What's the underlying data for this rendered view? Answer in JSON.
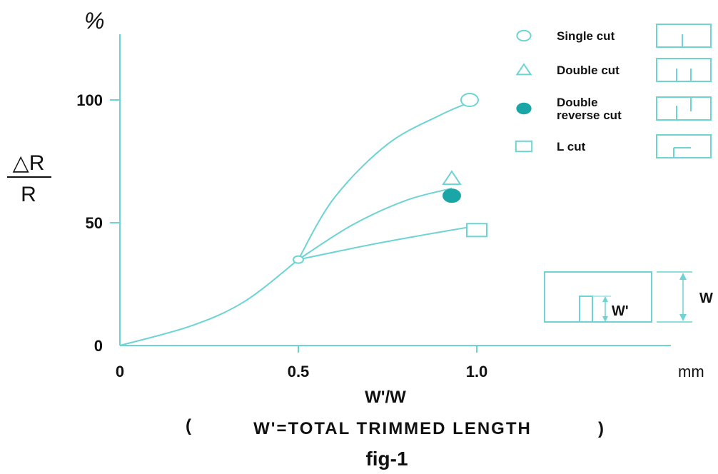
{
  "chart_data": {
    "type": "line",
    "title": "",
    "caption": "fig-1",
    "xlabel": "W'/W",
    "xlabel_note": "W'=TOTAL TRIMMED LENGTH",
    "x_unit": "mm",
    "y_unit": "%",
    "ylabel_numerator": "△R",
    "ylabel_denominator": "R",
    "xlim": [
      0,
      1.5
    ],
    "ylim": [
      0,
      115
    ],
    "x_ticks": [
      "0",
      "0.5",
      "1.0"
    ],
    "x_tick_values": [
      0,
      0.5,
      1.0
    ],
    "y_ticks": [
      "0",
      "50",
      "100"
    ],
    "y_tick_values": [
      0,
      50,
      100
    ],
    "grid": false,
    "legend_position": "top-right",
    "shared_curve": {
      "x": [
        0,
        0.2,
        0.35,
        0.5
      ],
      "y": [
        0,
        8,
        18,
        35
      ]
    },
    "branch_start": {
      "x": 0.5,
      "y": 35
    },
    "series": [
      {
        "name": "Single cut",
        "marker": "circle-open",
        "curve": {
          "x": [
            0.5,
            0.6,
            0.75,
            0.9,
            0.98
          ],
          "y": [
            35,
            60,
            82,
            94,
            99
          ]
        },
        "point": {
          "x": 0.98,
          "y": 100
        }
      },
      {
        "name": "Double cut",
        "marker": "triangle-open",
        "curve": {
          "x": [
            0.5,
            0.65,
            0.8,
            0.93
          ],
          "y": [
            35,
            49,
            59,
            64
          ]
        },
        "point": {
          "x": 0.93,
          "y": 68
        }
      },
      {
        "name": "Double reverse cut",
        "marker": "circle-filled",
        "curve": null,
        "point": {
          "x": 0.93,
          "y": 61
        }
      },
      {
        "name": "L cut",
        "marker": "square-open",
        "curve": {
          "x": [
            0.5,
            0.7,
            0.85,
            0.97
          ],
          "y": [
            35,
            41,
            45,
            48
          ]
        },
        "point": {
          "x": 1.0,
          "y": 47
        }
      }
    ],
    "legend": [
      {
        "label_lines": [
          "Single cut"
        ],
        "marker": "circle-open",
        "icon": "single-cut-icon"
      },
      {
        "label_lines": [
          "Double cut"
        ],
        "marker": "triangle-open",
        "icon": "double-cut-icon"
      },
      {
        "label_lines": [
          "Double",
          "reverse cut"
        ],
        "marker": "circle-filled",
        "icon": "double-reverse-cut-icon"
      },
      {
        "label_lines": [
          "L cut"
        ],
        "marker": "square-open",
        "icon": "l-cut-icon"
      }
    ],
    "inset": {
      "w_label": "W",
      "w_prime_label": "W'"
    },
    "colors": {
      "line": "#6dd3d3",
      "fill": "#1aa6a6",
      "text": "#111111"
    }
  }
}
